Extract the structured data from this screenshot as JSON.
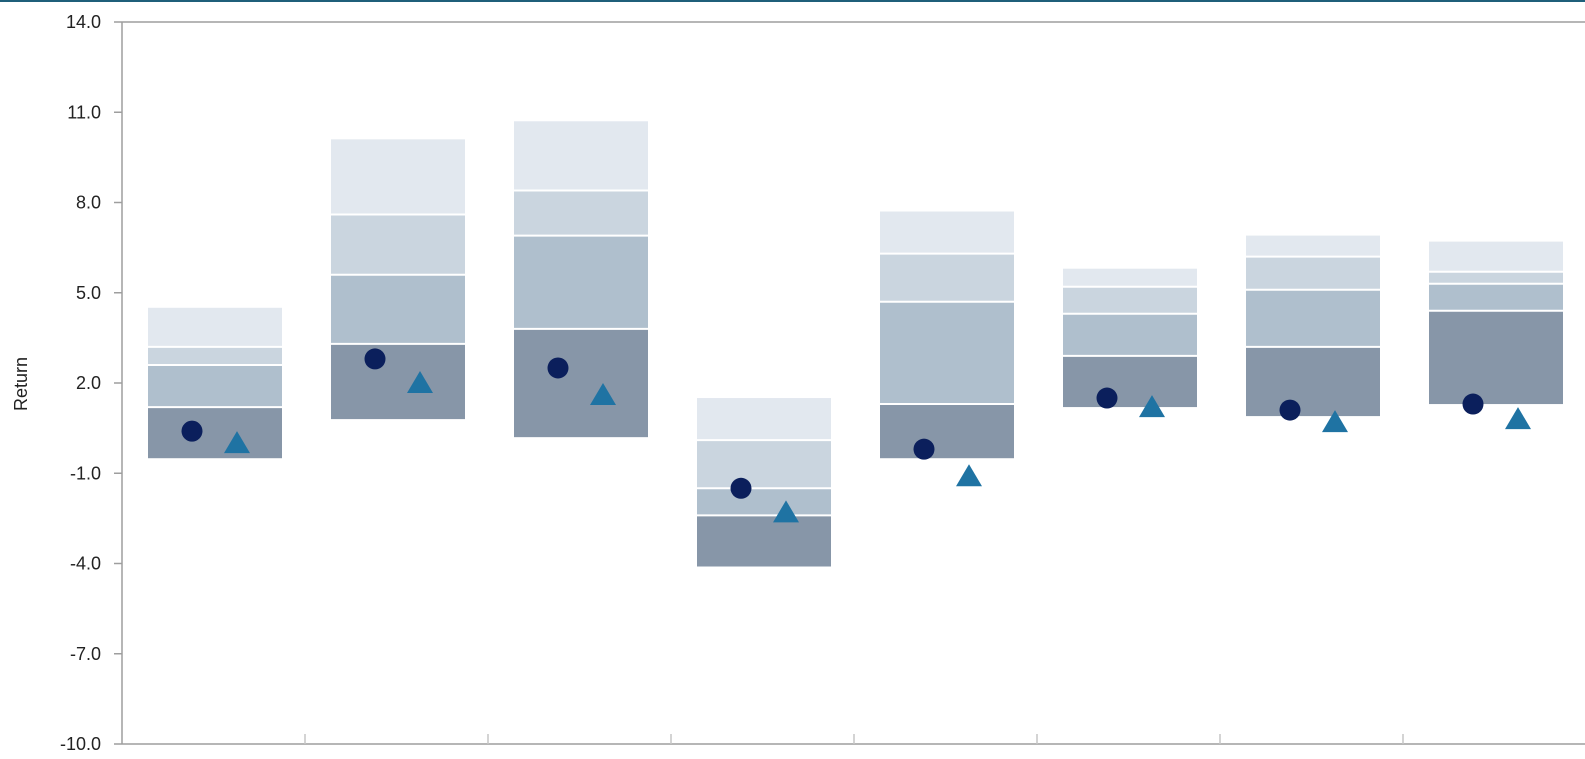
{
  "chart_data": {
    "type": "floating-bar",
    "ylabel": "Return",
    "ylim": [
      -10,
      14
    ],
    "yticks": [
      "14.0",
      "11.0",
      "8.0",
      "5.0",
      "2.0",
      "-1.0",
      "-4.0",
      "-7.0",
      "-10.0"
    ],
    "ytick_values": [
      14,
      11,
      8,
      5,
      2,
      -1,
      -4,
      -7,
      -10
    ],
    "band_colors": [
      "#8796a8",
      "#afbfcd",
      "#cad5df",
      "#e2e8ef"
    ],
    "marker_colors": {
      "circle": "#0b1f5c",
      "triangle": "#1f73a3"
    },
    "grid": false,
    "groups": [
      {
        "bounds": [
          -0.5,
          1.2,
          2.6,
          3.2,
          4.5
        ],
        "circle": 0.4,
        "triangle": 0.0
      },
      {
        "bounds": [
          0.8,
          3.3,
          5.6,
          7.6,
          10.1
        ],
        "circle": 2.8,
        "triangle": 2.0
      },
      {
        "bounds": [
          0.2,
          3.8,
          6.9,
          8.4,
          10.7
        ],
        "circle": 2.5,
        "triangle": 1.6
      },
      {
        "bounds": [
          -4.1,
          -2.4,
          -1.5,
          0.1,
          1.5
        ],
        "circle": -1.5,
        "triangle": -2.3
      },
      {
        "bounds": [
          -0.5,
          1.3,
          4.7,
          6.3,
          7.7
        ],
        "circle": -0.2,
        "triangle": -1.1
      },
      {
        "bounds": [
          1.2,
          2.9,
          4.3,
          5.2,
          5.8
        ],
        "circle": 1.5,
        "triangle": 1.2
      },
      {
        "bounds": [
          0.9,
          3.2,
          5.1,
          6.2,
          6.9
        ],
        "circle": 1.1,
        "triangle": 0.7
      },
      {
        "bounds": [
          1.3,
          4.4,
          5.3,
          5.7,
          6.7
        ],
        "circle": 1.3,
        "triangle": 0.8
      }
    ]
  }
}
